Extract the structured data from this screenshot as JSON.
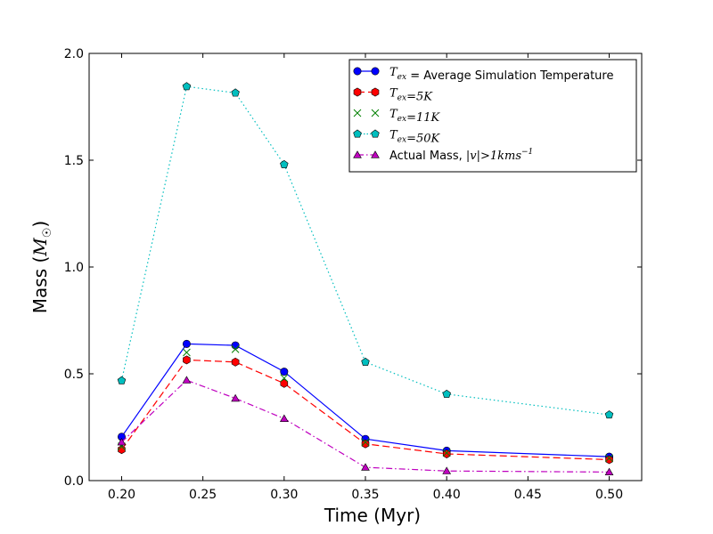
{
  "chart_data": {
    "type": "line",
    "xlabel": "Time (Myr)",
    "ylabel_prefix": "Mass (",
    "ylabel_symbol": "M",
    "ylabel_subscript": "☉",
    "ylabel_suffix": ")",
    "xlim": [
      0.18,
      0.52
    ],
    "ylim": [
      0.0,
      2.0
    ],
    "xticks": [
      0.2,
      0.25,
      0.3,
      0.35,
      0.4,
      0.45,
      0.5
    ],
    "xtick_labels": [
      "0.20",
      "0.25",
      "0.30",
      "0.35",
      "0.40",
      "0.45",
      "0.50"
    ],
    "yticks": [
      0.0,
      0.5,
      1.0,
      1.5,
      2.0
    ],
    "ytick_labels": [
      "0.0",
      "0.5",
      "1.0",
      "1.5",
      "2.0"
    ],
    "x": [
      0.2,
      0.24,
      0.27,
      0.3,
      0.35,
      0.4,
      0.5
    ],
    "legend_position": "top-right",
    "series": [
      {
        "name": "T_ex = Average Simulation Temperature",
        "legend_parts": [
          {
            "math": "T",
            "sub": "ex"
          },
          {
            "text": " = Average Simulation Temperature"
          }
        ],
        "values": [
          0.205,
          0.64,
          0.633,
          0.51,
          0.195,
          0.14,
          0.112
        ],
        "color": "#0000ff",
        "linestyle": "solid",
        "marker": "circle"
      },
      {
        "name": "T_ex=5K",
        "legend_parts": [
          {
            "math": "T",
            "sub": "ex"
          },
          {
            "math": "=5K"
          }
        ],
        "values": [
          0.145,
          0.565,
          0.555,
          0.455,
          0.172,
          0.125,
          0.098
        ],
        "color": "#ff0000",
        "linestyle": "dashed",
        "marker": "hexagon"
      },
      {
        "name": "T_ex=11K",
        "legend_parts": [
          {
            "math": "T",
            "sub": "ex"
          },
          {
            "math": "=11K"
          }
        ],
        "values": [
          0.16,
          0.6,
          0.615,
          0.48,
          0.18,
          0.13,
          0.105
        ],
        "color": "#008000",
        "linestyle": "none",
        "marker": "x"
      },
      {
        "name": "T_ex=50K",
        "legend_parts": [
          {
            "math": "T",
            "sub": "ex"
          },
          {
            "math": "=50K"
          }
        ],
        "values": [
          0.468,
          1.845,
          1.815,
          1.48,
          0.555,
          0.405,
          0.308
        ],
        "color": "#00bfbf",
        "linestyle": "dotted",
        "marker": "pentagon"
      },
      {
        "name": "Actual Mass, |v|>1kms^-1",
        "legend_parts": [
          {
            "text": "Actual Mass, "
          },
          {
            "math": "|v|>1kms"
          },
          {
            "sup": "−1"
          }
        ],
        "values": [
          0.18,
          0.47,
          0.385,
          0.29,
          0.062,
          0.045,
          0.04
        ],
        "color": "#bf00bf",
        "linestyle": "dashdot",
        "marker": "triangle"
      }
    ]
  }
}
